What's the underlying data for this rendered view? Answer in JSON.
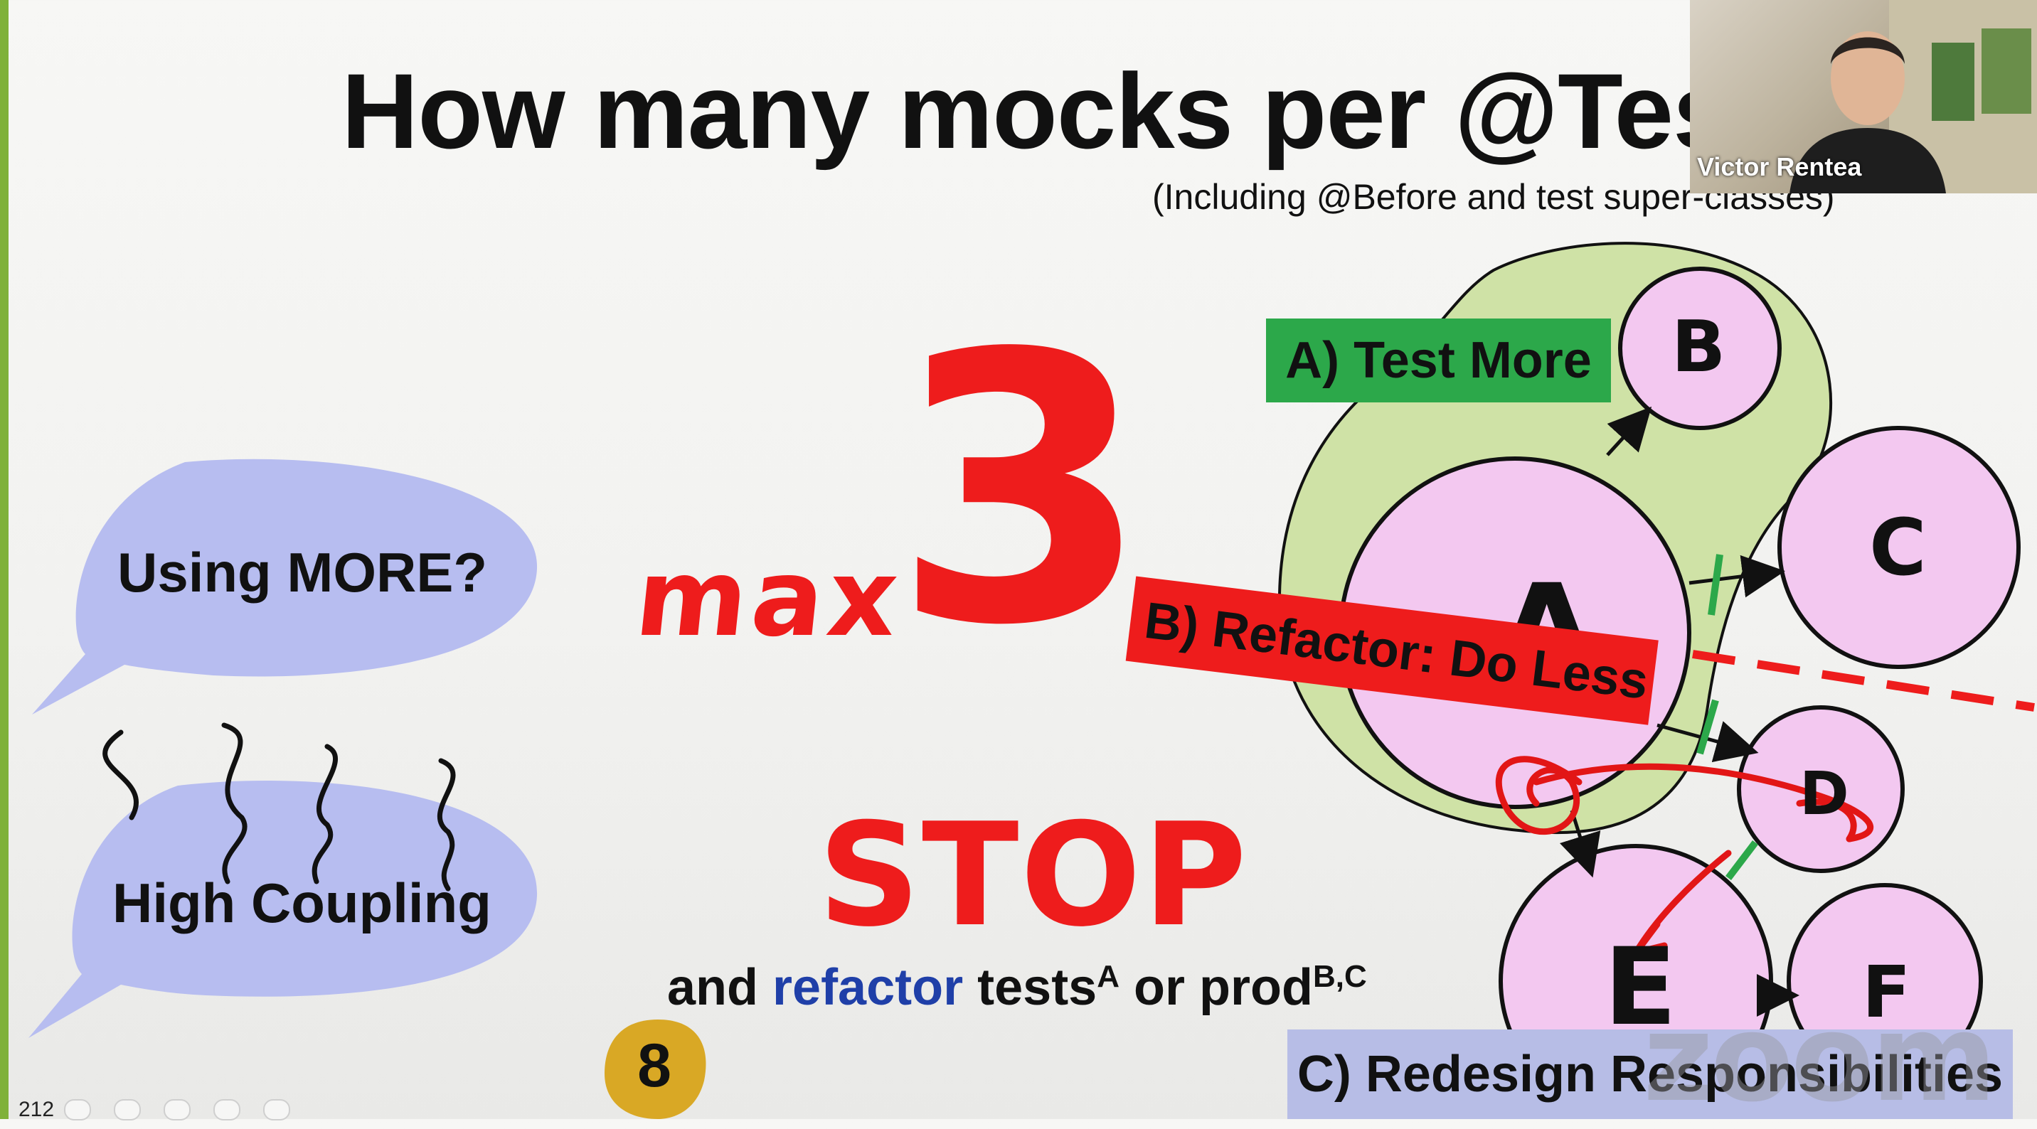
{
  "slide": {
    "title": "How many mocks per @Test",
    "subtitle": "(Including @Before and test super-classes)",
    "bubble_question": "Using MORE?",
    "bubble_smell": "High Coupling",
    "max_label": "max",
    "max_number": "3",
    "stop_label": "STOP",
    "refactor_line": {
      "and": "and ",
      "refactor": "refactor",
      "tests": " tests",
      "tests_sup": "A",
      "or_prod": " or prod",
      "prod_sup": "B,C"
    },
    "options": {
      "a": "A) Test More",
      "b": "B) Refactor: Do Less",
      "c": "C) Redesign Responsibilities"
    },
    "nodes": {
      "a": "A",
      "b": "B",
      "c": "C",
      "d": "D",
      "e": "E",
      "f": "F"
    },
    "page_number": "212",
    "page_badge": "8"
  },
  "video": {
    "participant_name": "Victor Rentea",
    "watermark": "zoom"
  },
  "colors": {
    "accent_red": "#ee1c1c",
    "test_more_green": "#2ca84a",
    "redesign_lavender": "#b7bde6",
    "bubble_blue": "#b7bdf0",
    "node_pink": "#f3c8f0",
    "blob_green": "#cfe2a6",
    "refactor_blue": "#1f3fa8"
  }
}
